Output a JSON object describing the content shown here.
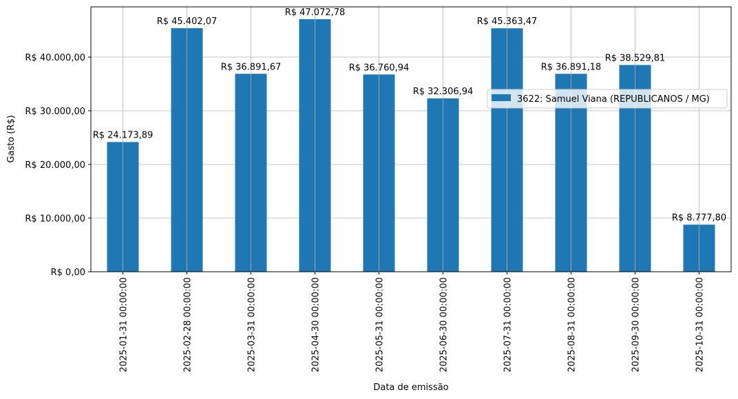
{
  "chart_data": {
    "type": "bar",
    "categories": [
      "2025-01-31 00:00:00",
      "2025-02-28 00:00:00",
      "2025-03-31 00:00:00",
      "2025-04-30 00:00:00",
      "2025-05-31 00:00:00",
      "2025-06-30 00:00:00",
      "2025-07-31 00:00:00",
      "2025-08-31 00:00:00",
      "2025-09-30 00:00:00",
      "2025-10-31 00:00:00"
    ],
    "values": [
      24173.89,
      45402.07,
      36891.67,
      47072.78,
      36760.94,
      32306.94,
      45363.47,
      36891.18,
      38529.81,
      8777.8
    ],
    "data_labels": [
      "R$ 24.173,89",
      "R$ 45.402,07",
      "R$ 36.891,67",
      "R$ 47.072,78",
      "R$ 36.760,94",
      "R$ 32.306,94",
      "R$ 45.363,47",
      "R$ 36.891,18",
      "R$ 38.529,81",
      "R$ 8.777,80"
    ],
    "xlabel": "Data de emissão",
    "ylabel": "Gasto (R$)",
    "ylim": [
      0,
      49360
    ],
    "yticks": [
      0,
      10000,
      20000,
      30000,
      40000
    ],
    "ytick_labels": [
      "R$ 0,00",
      "R$ 10.000,00",
      "R$ 20.000,00",
      "R$ 30.000,00",
      "R$ 40.000,00"
    ],
    "grid": true,
    "legend": {
      "placement": "top-right",
      "entries": [
        "3622: Samuel Viana (REPUBLICANOS / MG)"
      ]
    },
    "color": "#1f77b4"
  }
}
